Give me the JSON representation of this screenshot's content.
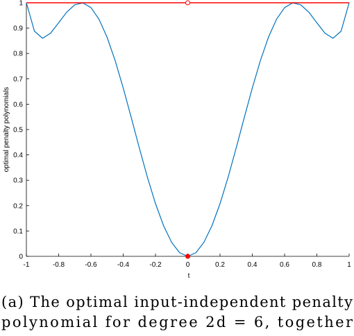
{
  "chart_data": {
    "type": "line",
    "ylabel": "optimal penalty polynomials",
    "xlabel": "t",
    "x": [
      -1,
      -0.95,
      -0.9,
      -0.85,
      -0.8,
      -0.75,
      -0.7,
      -0.65,
      -0.6,
      -0.55,
      -0.5,
      -0.45,
      -0.4,
      -0.35,
      -0.3,
      -0.25,
      -0.2,
      -0.15,
      -0.1,
      -0.05,
      0,
      0.05,
      0.1,
      0.15,
      0.2,
      0.25,
      0.3,
      0.35,
      0.4,
      0.45,
      0.5,
      0.55,
      0.6,
      0.65,
      0.7,
      0.75,
      0.8,
      0.85,
      0.9,
      0.95,
      1
    ],
    "series": [
      {
        "color": "#0072bd",
        "values": [
          1,
          0.888,
          0.86,
          0.88,
          0.921,
          0.963,
          0.992,
          0.9995,
          0.981,
          0.935,
          0.864,
          0.772,
          0.664,
          0.547,
          0.427,
          0.312,
          0.208,
          0.121,
          0.055,
          0.014,
          0,
          0.014,
          0.055,
          0.121,
          0.208,
          0.312,
          0.427,
          0.547,
          0.664,
          0.772,
          0.864,
          0.935,
          0.981,
          0.9995,
          0.992,
          0.963,
          0.921,
          0.88,
          0.86,
          0.888,
          1
        ]
      },
      {
        "color": "#ff0000",
        "values": [
          1,
          1,
          1,
          1,
          1,
          1,
          1,
          1,
          1,
          1,
          1,
          1,
          1,
          1,
          1,
          1,
          1,
          1,
          1,
          1,
          1,
          1,
          1,
          1,
          1,
          1,
          1,
          1,
          1,
          1,
          1,
          1,
          1,
          1,
          1,
          1,
          1,
          1,
          1,
          1,
          1
        ]
      }
    ],
    "points": [
      {
        "x": 0,
        "y": 1,
        "filled": false,
        "color": "#ff0000"
      },
      {
        "x": 0,
        "y": 0,
        "filled": true,
        "color": "#ff0000"
      }
    ],
    "xlim": [
      -1,
      1
    ],
    "xticks": [
      -1,
      -0.8,
      -0.6,
      -0.4,
      -0.2,
      0,
      0.2,
      0.4,
      0.6,
      0.8,
      1
    ],
    "ylim": [
      0,
      1
    ],
    "yticks": [
      0,
      0.1,
      0.2,
      0.3,
      0.4,
      0.5,
      0.6,
      0.7,
      0.8,
      0.9,
      1
    ],
    "grid": false
  },
  "caption": [
    "(a) The optimal input-independent penalty",
    "polynomial for degree 2d = 6, together"
  ]
}
